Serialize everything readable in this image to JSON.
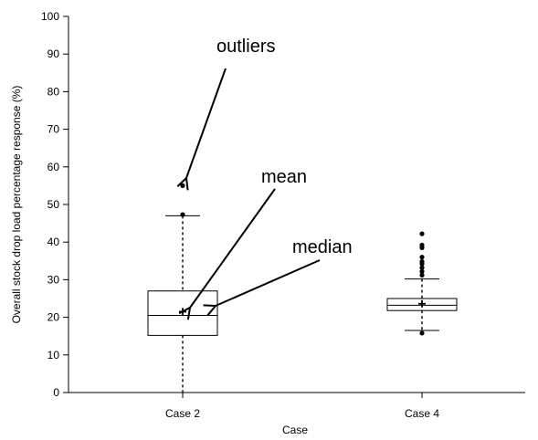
{
  "chart_data": {
    "type": "box",
    "xlabel": "Case",
    "ylabel": "Overall stock drop load percentage response (%)",
    "ylim": [
      0,
      100
    ],
    "yticks": [
      0,
      10,
      20,
      30,
      40,
      50,
      60,
      70,
      80,
      90,
      100
    ],
    "grid": false,
    "categories": [
      "Case 2",
      "Case 4"
    ],
    "boxes": [
      {
        "label": "Case 2",
        "whisker_low": 0,
        "q1": 15.2,
        "median": 20.5,
        "mean": 21.5,
        "q3": 27,
        "whisker_high": 47,
        "outliers": [
          47.3,
          55
        ]
      },
      {
        "label": "Case 4",
        "whisker_low": 16.5,
        "q1": 21.8,
        "median": 23.2,
        "mean": 23.6,
        "q3": 25,
        "whisker_high": 30.2,
        "outliers": [
          15.8,
          31.2,
          32.2,
          33.2,
          34.2,
          34.8,
          36,
          38.5,
          39.2,
          42.2
        ]
      }
    ],
    "annotations": [
      {
        "text": "outliers",
        "points_to": "Case 2 outlier at 55"
      },
      {
        "text": "mean",
        "points_to": "Case 2 mean"
      },
      {
        "text": "median",
        "points_to": "Case 2 median"
      }
    ]
  }
}
